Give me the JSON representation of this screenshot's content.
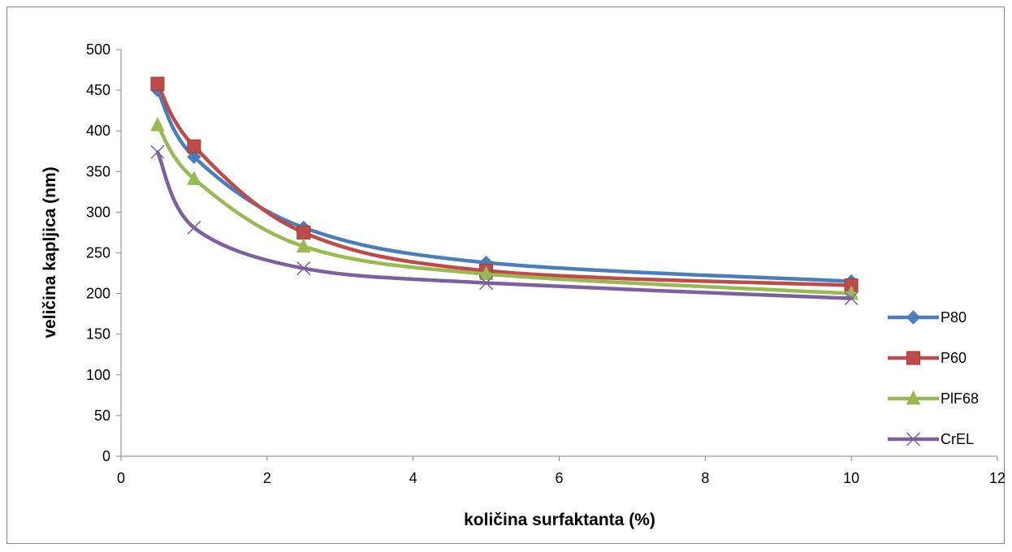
{
  "chart_data": {
    "type": "line",
    "title": "",
    "xlabel": "količina surfaktanta (%)",
    "ylabel": "veličina kapljica (nm)",
    "xlim": [
      0,
      12
    ],
    "ylim": [
      0,
      500
    ],
    "xticks": [
      0,
      2,
      4,
      6,
      8,
      10,
      12
    ],
    "yticks": [
      0,
      50,
      100,
      150,
      200,
      250,
      300,
      350,
      400,
      450,
      500
    ],
    "x": [
      0.5,
      1,
      2.5,
      5,
      10
    ],
    "grid": false,
    "legend_position": "right",
    "series": [
      {
        "name": "P80",
        "values": [
          450,
          368,
          281,
          238,
          215
        ],
        "color": "#4a7ebb",
        "marker": "diamond"
      },
      {
        "name": "P60",
        "values": [
          458,
          381,
          275,
          228,
          210
        ],
        "color": "#be4b48",
        "marker": "square"
      },
      {
        "name": "PlF68",
        "values": [
          407,
          341,
          258,
          224,
          200
        ],
        "color": "#98b954",
        "marker": "triangle"
      },
      {
        "name": "CrEL",
        "values": [
          374,
          281,
          231,
          213,
          194
        ],
        "color": "#7d60a0",
        "marker": "x"
      }
    ]
  }
}
